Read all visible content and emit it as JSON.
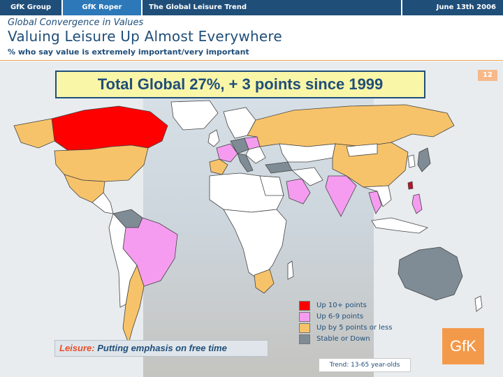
{
  "header": {
    "tabs": [
      "GfK Group",
      "GfK Roper",
      "The Global Leisure Trend",
      "June 13th 2006"
    ]
  },
  "titles": {
    "subhead": "Global Convergence in Values",
    "headline": "Valuing Leisure Up Almost Everywhere",
    "caption": "% who say value is extremely important/very important"
  },
  "page_number": "12",
  "banner": "Total Global 27%, + 3 points since 1999",
  "legend": [
    {
      "label": "Up 10+ points",
      "color": "#ff0000"
    },
    {
      "label": "Up 6-9 points",
      "color": "#f59cf0"
    },
    {
      "label": "Up by 5 points or less",
      "color": "#f7c36a"
    },
    {
      "label": "Stable or Down",
      "color": "#7f8c95"
    }
  ],
  "footer": {
    "leisure_key": "Leisure:",
    "leisure_text": "Putting emphasis on free time",
    "trend": "Trend: 13-65 year-olds"
  },
  "logo": "GfK",
  "colors": {
    "navy": "#1f4e79",
    "orange": "#f39a4a",
    "unrated": "#ffffff"
  }
}
